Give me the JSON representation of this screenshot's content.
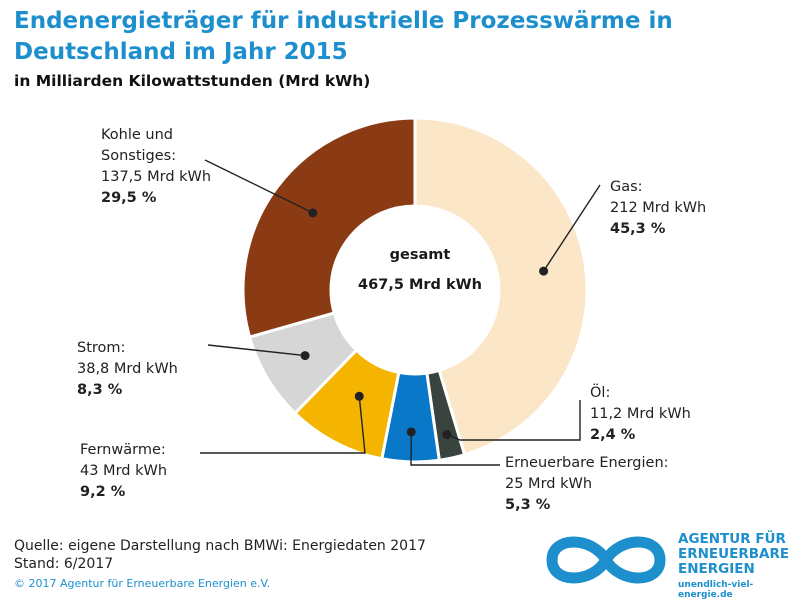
{
  "title": "Endenergieträger für industrielle Prozesswärme in Deutschland im Jahr 2015",
  "subtitle": "in Milliarden Kilowattstunden (Mrd kWh)",
  "center": {
    "line1": "gesamt",
    "line2": "467,5 Mrd kWh"
  },
  "colors": {
    "gas": "#fbe6c8",
    "oel": "#39443f",
    "erneuerbare": "#0a78c8",
    "fernwaerme": "#f4b400",
    "strom": "#d6d6d6",
    "kohle": "#8a3b14",
    "brand": "#1d8fcd"
  },
  "chart_data": {
    "type": "pie",
    "variant": "donut",
    "title": "Endenergieträger für industrielle Prozesswärme in Deutschland im Jahr 2015",
    "subtitle": "in Milliarden Kilowattstunden (Mrd kWh)",
    "total": 467.5,
    "unit": "Mrd kWh",
    "slices": [
      {
        "key": "gas",
        "label": "Gas:",
        "value": 212,
        "value_text": "212 Mrd kWh",
        "percent": 45.3,
        "percent_text": "45,3 %"
      },
      {
        "key": "oel",
        "label": "Öl:",
        "value": 11.2,
        "value_text": "11,2 Mrd kWh",
        "percent": 2.4,
        "percent_text": "2,4 %"
      },
      {
        "key": "erneuerbare",
        "label": "Erneuerbare Energien:",
        "value": 25,
        "value_text": "25 Mrd kWh",
        "percent": 5.3,
        "percent_text": "5,3 %"
      },
      {
        "key": "fernwaerme",
        "label": "Fernwärme:",
        "value": 43,
        "value_text": "43 Mrd kWh",
        "percent": 9.2,
        "percent_text": "9,2 %"
      },
      {
        "key": "strom",
        "label": "Strom:",
        "value": 38.8,
        "value_text": "38,8 Mrd kWh",
        "percent": 8.3,
        "percent_text": "8,3 %"
      },
      {
        "key": "kohle",
        "label_line1": "Kohle und",
        "label": "Sonstiges:",
        "value": 137.5,
        "value_text": "137,5 Mrd kWh",
        "percent": 29.5,
        "percent_text": "29,5 %"
      }
    ]
  },
  "source": {
    "line1": "Quelle: eigene Darstellung nach BMWi: Energiedaten 2017",
    "line2": "Stand: 6/2017"
  },
  "copyright": "© 2017 Agentur für Erneuerbare Energien e.V.",
  "logo": {
    "line1": "AGENTUR FÜR",
    "line2": "ERNEUERBARE",
    "line3": "ENERGIEN",
    "url": "unendlich-viel-energie.de",
    "icon": "infinity-icon"
  }
}
